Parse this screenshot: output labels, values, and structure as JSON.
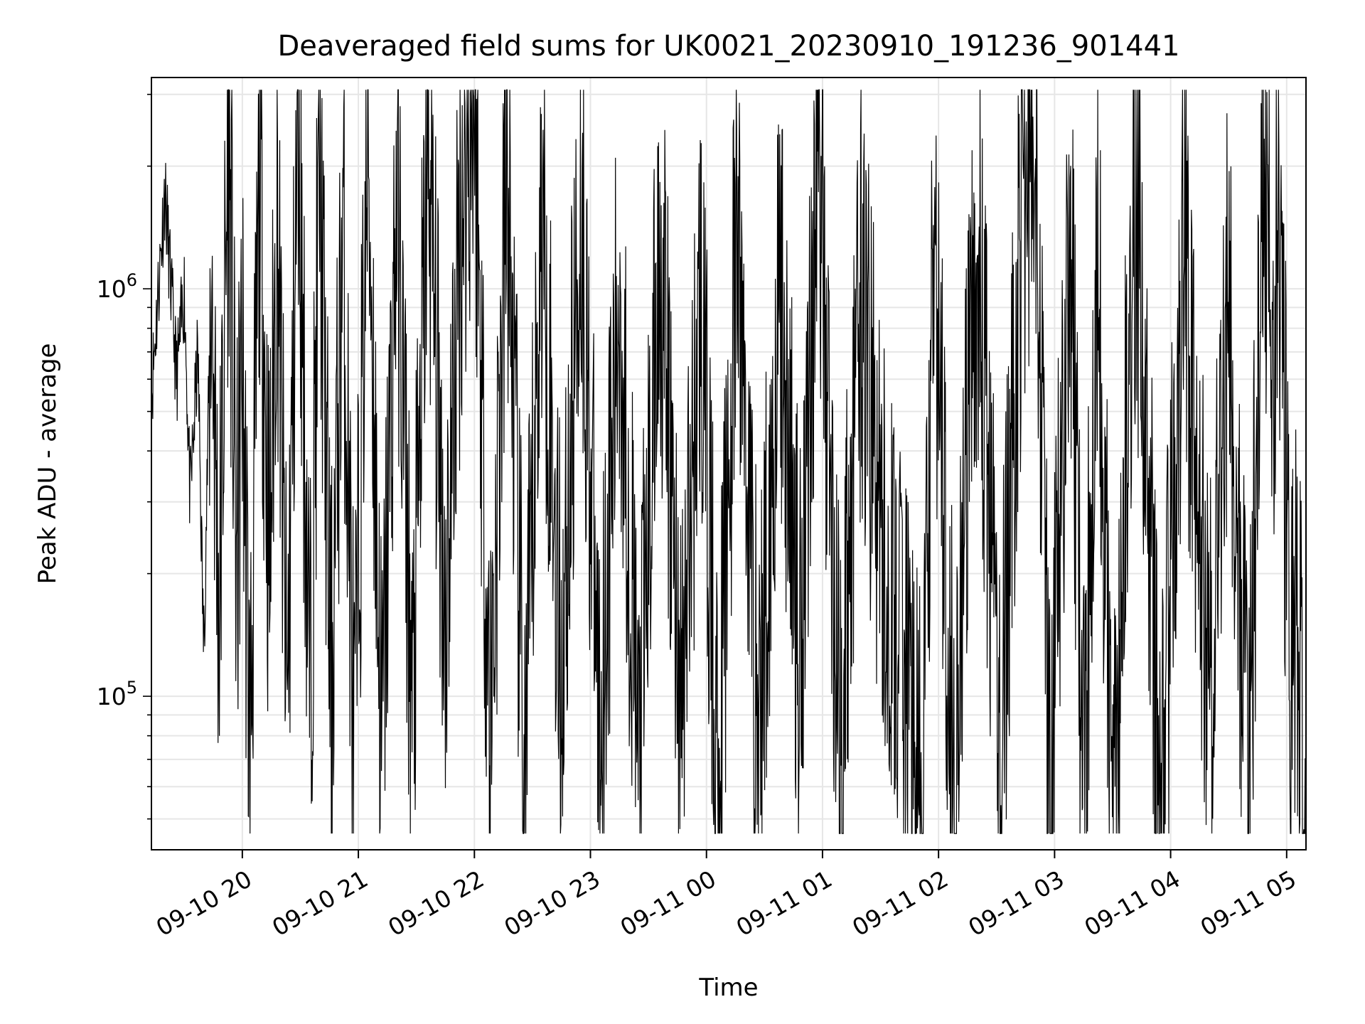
{
  "chart_data": {
    "type": "line",
    "title": "Deaveraged field sums for UK0021_20230910_191236_901441",
    "xlabel": "Time",
    "ylabel": "Peak ADU - average",
    "x_start": "09-10 19:13",
    "x_end": "09-11 05:10",
    "xlim": [
      "09-10 19:13",
      "09-11 05:10"
    ],
    "ylim": [
      42000,
      3300000
    ],
    "yscale": "log",
    "grid": true,
    "legend": "none",
    "line_color": "#000000",
    "x_ticks": [
      "09-10 20",
      "09-10 21",
      "09-10 22",
      "09-10 23",
      "09-11 00",
      "09-11 01",
      "09-11 02",
      "09-11 03",
      "09-11 04",
      "09-11 05"
    ],
    "y_ticks": [
      {
        "base": "10",
        "exp": "5",
        "value": 100000
      },
      {
        "base": "10",
        "exp": "6",
        "value": 1000000
      }
    ],
    "series": [
      {
        "x": [
          "09-10 19:13",
          "09-10 19:20",
          "09-10 19:26",
          "09-10 19:30",
          "09-10 19:33",
          "09-10 19:37",
          "09-10 19:40",
          "09-10 19:44",
          "09-10 19:48",
          "09-10 19:53",
          "09-10 19:57",
          "09-10 20:00",
          "09-10 20:04",
          "09-10 20:09",
          "09-10 20:14",
          "09-10 20:18",
          "09-10 20:23",
          "09-10 20:29",
          "09-10 20:35",
          "09-10 20:40",
          "09-10 20:46",
          "09-10 20:52",
          "09-10 20:58",
          "09-10 21:05",
          "09-10 21:12",
          "09-10 21:20",
          "09-10 21:28",
          "09-10 21:36",
          "09-10 21:45",
          "09-10 21:53",
          "09-10 22:00",
          "09-10 22:08",
          "09-10 22:17",
          "09-10 22:26",
          "09-10 22:35",
          "09-10 22:45",
          "09-10 22:55",
          "09-10 23:05",
          "09-10 23:15",
          "09-10 23:25",
          "09-10 23:36",
          "09-10 23:47",
          "09-10 23:57",
          "09-11 00:06",
          "09-11 00:16",
          "09-11 00:27",
          "09-11 00:38",
          "09-11 00:48",
          "09-11 00:58",
          "09-11 01:09",
          "09-11 01:20",
          "09-11 01:32",
          "09-11 01:44",
          "09-11 01:51",
          "09-11 01:58",
          "09-11 02:08",
          "09-11 02:20",
          "09-11 02:32",
          "09-11 02:43",
          "09-11 02:50",
          "09-11 02:58",
          "09-11 03:08",
          "09-11 03:15",
          "09-11 03:22",
          "09-11 03:30",
          "09-11 03:42",
          "09-11 03:55",
          "09-11 04:07",
          "09-11 04:20",
          "09-11 04:30",
          "09-11 04:40",
          "09-11 04:48",
          "09-11 04:53",
          "09-11 04:56",
          "09-11 04:59",
          "09-11 05:02",
          "09-11 05:05",
          "09-11 05:08",
          "09-11 05:10"
        ],
        "y": [
          550000,
          1750000,
          600000,
          1000000,
          300000,
          700000,
          130000,
          1100000,
          160000,
          2600000,
          190000,
          700000,
          70000,
          2000000,
          200000,
          1650000,
          90000,
          2700000,
          95000,
          2000000,
          100000,
          1400000,
          68000,
          2400000,
          70000,
          1800000,
          85000,
          2300000,
          160000,
          1500000,
          3200000,
          80000,
          1900000,
          60000,
          1600000,
          110000,
          1700000,
          80000,
          1000000,
          70000,
          1300000,
          90000,
          1000000,
          60000,
          1400000,
          80000,
          1000000,
          130000,
          2300000,
          70000,
          1000000,
          200000,
          110000,
          48000,
          1200000,
          65000,
          1300000,
          70000,
          1500000,
          2900000,
          50000,
          1600000,
          55000,
          1400000,
          48000,
          1800000,
          50000,
          1200000,
          100000,
          1000000,
          60000,
          1700000,
          700000,
          1800000,
          400000,
          110000,
          160000,
          80000,
          50000
        ]
      }
    ]
  }
}
